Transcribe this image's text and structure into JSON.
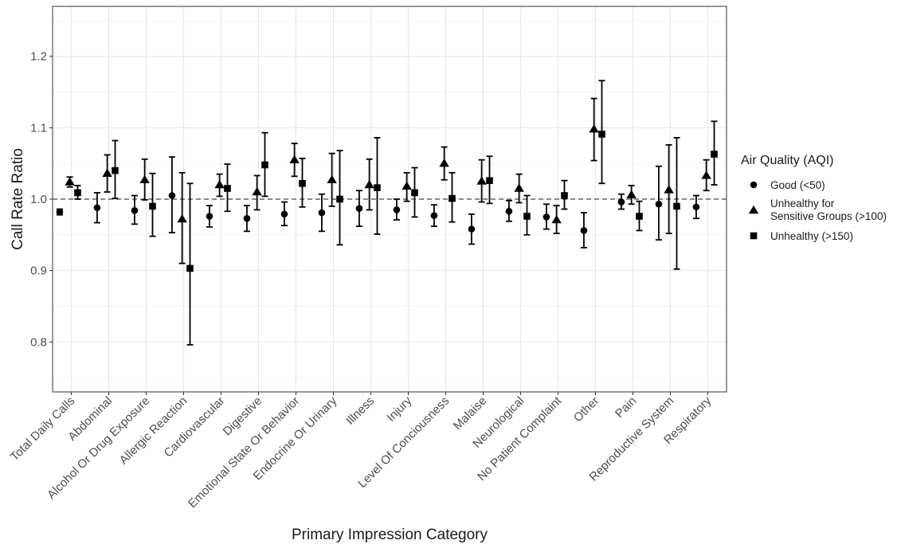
{
  "chart_data": {
    "type": "scatter",
    "subtype": "point-range (estimate with error bars)",
    "xlabel": "Primary Impression Category",
    "ylabel": "Call Rate Ratio",
    "ylim": [
      0.73,
      1.27
    ],
    "yticks": [
      0.8,
      0.9,
      1.0,
      1.1,
      1.2
    ],
    "ytick_labels": [
      "0.8",
      "0.9",
      "1.0",
      "1.1",
      "1.2"
    ],
    "reference_line": {
      "y": 1.0,
      "style": "dashed"
    },
    "grid": true,
    "legend": {
      "title": "Air Quality (AQI)",
      "position": "right"
    },
    "categories": [
      "Total Daily Calls",
      "Abdominal",
      "Alcohol Or Drug Exposure",
      "Allergic Reaction",
      "Cardiovascular",
      "Digestive",
      "Emotional State Or Behavior",
      "Endocrine Or Urinary",
      "Illness",
      "Injury",
      "Level Of Conciousness",
      "Malaise",
      "Neurological",
      "No Patient Complaint",
      "Other",
      "Pain",
      "Reproductive System",
      "Respiratory"
    ],
    "series": [
      {
        "name": "Good (<50)",
        "marker": "circle",
        "values": [
          0.982,
          0.988,
          0.984,
          1.005,
          0.976,
          0.973,
          0.979,
          0.981,
          0.987,
          0.985,
          0.977,
          0.958,
          0.983,
          0.975,
          0.956,
          0.996,
          0.993,
          0.989
        ],
        "lower": [
          0.978,
          0.967,
          0.965,
          0.953,
          0.961,
          0.955,
          0.963,
          0.955,
          0.962,
          0.971,
          0.962,
          0.937,
          0.969,
          0.958,
          0.932,
          0.986,
          0.943,
          0.973
        ],
        "upper": [
          0.986,
          1.009,
          1.005,
          1.059,
          0.991,
          0.991,
          0.996,
          1.007,
          1.012,
          1.0,
          0.992,
          0.979,
          0.998,
          0.993,
          0.981,
          1.007,
          1.046,
          1.005
        ]
      },
      {
        "name": "Unhealthy for Sensitive Groups (>100)",
        "marker": "triangle",
        "values": [
          1.024,
          1.036,
          1.027,
          0.972,
          1.02,
          1.01,
          1.055,
          1.027,
          1.02,
          1.018,
          1.05,
          1.025,
          1.015,
          0.971,
          1.098,
          1.006,
          1.013,
          1.033
        ],
        "lower": [
          1.017,
          1.01,
          0.999,
          0.91,
          1.004,
          0.985,
          1.032,
          0.99,
          0.985,
          0.997,
          1.027,
          0.996,
          0.995,
          0.952,
          1.054,
          0.993,
          0.952,
          1.012
        ],
        "upper": [
          1.031,
          1.062,
          1.056,
          1.037,
          1.035,
          1.033,
          1.078,
          1.064,
          1.056,
          1.037,
          1.073,
          1.055,
          1.035,
          0.991,
          1.141,
          1.019,
          1.076,
          1.055
        ]
      },
      {
        "name": "Unhealthy (>150)",
        "marker": "square",
        "values": [
          1.009,
          1.04,
          0.99,
          0.903,
          1.015,
          1.048,
          1.022,
          1.0,
          1.016,
          1.009,
          1.001,
          1.026,
          0.976,
          1.005,
          1.091,
          0.976,
          0.99,
          1.063
        ],
        "lower": [
          1.0,
          1.001,
          0.948,
          0.796,
          0.983,
          1.004,
          0.989,
          0.936,
          0.951,
          0.975,
          0.968,
          0.994,
          0.95,
          0.986,
          1.022,
          0.956,
          0.902,
          1.02
        ],
        "upper": [
          1.019,
          1.082,
          1.036,
          1.022,
          1.049,
          1.093,
          1.057,
          1.068,
          1.086,
          1.044,
          1.037,
          1.06,
          1.005,
          1.026,
          1.166,
          0.997,
          1.086,
          1.109
        ]
      }
    ]
  }
}
